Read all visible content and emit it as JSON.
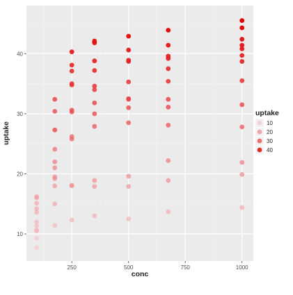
{
  "chart_data": {
    "type": "scatter",
    "xlabel": "conc",
    "ylabel": "uptake",
    "xlim": [
      50,
      1050
    ],
    "ylim": [
      5.5,
      48
    ],
    "x_ticks": [
      250,
      500,
      750,
      1000
    ],
    "y_ticks": [
      10,
      20,
      30,
      40
    ],
    "grid": true,
    "legend": {
      "title": "uptake",
      "position": "right",
      "entries": [
        "10",
        "20",
        "30",
        "40"
      ],
      "levels": [
        10,
        20,
        30,
        40
      ]
    },
    "color_scale": {
      "low": "#f9c3c9",
      "high": "#e00000",
      "min": 7.7,
      "max": 45.5
    },
    "points": [
      {
        "x": 95,
        "y": 16.0
      },
      {
        "x": 95,
        "y": 13.6
      },
      {
        "x": 95,
        "y": 16.2
      },
      {
        "x": 95,
        "y": 14.2
      },
      {
        "x": 95,
        "y": 15.1
      },
      {
        "x": 95,
        "y": 12.0
      },
      {
        "x": 95,
        "y": 11.3
      },
      {
        "x": 95,
        "y": 10.6
      },
      {
        "x": 95,
        "y": 10.6
      },
      {
        "x": 95,
        "y": 9.3
      },
      {
        "x": 95,
        "y": 7.7
      },
      {
        "x": 95,
        "y": 10.5
      },
      {
        "x": 175,
        "y": 30.4
      },
      {
        "x": 175,
        "y": 27.3
      },
      {
        "x": 175,
        "y": 32.4
      },
      {
        "x": 175,
        "y": 24.1
      },
      {
        "x": 175,
        "y": 21.0
      },
      {
        "x": 175,
        "y": 19.2
      },
      {
        "x": 175,
        "y": 22.0
      },
      {
        "x": 175,
        "y": 19.5
      },
      {
        "x": 175,
        "y": 18.0
      },
      {
        "x": 175,
        "y": 11.4
      },
      {
        "x": 175,
        "y": 15.0
      },
      {
        "x": 175,
        "y": 27.3
      },
      {
        "x": 250,
        "y": 34.8
      },
      {
        "x": 250,
        "y": 37.1
      },
      {
        "x": 250,
        "y": 40.3
      },
      {
        "x": 250,
        "y": 30.6
      },
      {
        "x": 250,
        "y": 30.3
      },
      {
        "x": 250,
        "y": 35.0
      },
      {
        "x": 250,
        "y": 25.8
      },
      {
        "x": 250,
        "y": 26.2
      },
      {
        "x": 250,
        "y": 18.1
      },
      {
        "x": 250,
        "y": 18.0
      },
      {
        "x": 250,
        "y": 12.3
      },
      {
        "x": 250,
        "y": 38.1
      },
      {
        "x": 350,
        "y": 37.2
      },
      {
        "x": 350,
        "y": 41.8
      },
      {
        "x": 350,
        "y": 42.1
      },
      {
        "x": 350,
        "y": 34.0
      },
      {
        "x": 350,
        "y": 34.6
      },
      {
        "x": 350,
        "y": 38.8
      },
      {
        "x": 350,
        "y": 30.0
      },
      {
        "x": 350,
        "y": 27.9
      },
      {
        "x": 350,
        "y": 18.9
      },
      {
        "x": 350,
        "y": 17.9
      },
      {
        "x": 350,
        "y": 13.0
      },
      {
        "x": 350,
        "y": 31.8
      },
      {
        "x": 500,
        "y": 35.3
      },
      {
        "x": 500,
        "y": 40.6
      },
      {
        "x": 500,
        "y": 42.9
      },
      {
        "x": 500,
        "y": 38.9
      },
      {
        "x": 500,
        "y": 38.7
      },
      {
        "x": 500,
        "y": 32.4
      },
      {
        "x": 500,
        "y": 31.0
      },
      {
        "x": 500,
        "y": 28.5
      },
      {
        "x": 500,
        "y": 19.6
      },
      {
        "x": 500,
        "y": 17.9
      },
      {
        "x": 500,
        "y": 12.5
      },
      {
        "x": 500,
        "y": 32.5
      },
      {
        "x": 675,
        "y": 39.2
      },
      {
        "x": 675,
        "y": 41.4
      },
      {
        "x": 675,
        "y": 43.9
      },
      {
        "x": 675,
        "y": 37.5
      },
      {
        "x": 675,
        "y": 39.6
      },
      {
        "x": 675,
        "y": 35.4
      },
      {
        "x": 675,
        "y": 31.1
      },
      {
        "x": 675,
        "y": 28.1
      },
      {
        "x": 675,
        "y": 22.2
      },
      {
        "x": 675,
        "y": 18.9
      },
      {
        "x": 675,
        "y": 13.7
      },
      {
        "x": 675,
        "y": 32.4
      },
      {
        "x": 1000,
        "y": 39.7
      },
      {
        "x": 1000,
        "y": 44.3
      },
      {
        "x": 1000,
        "y": 45.5
      },
      {
        "x": 1000,
        "y": 42.4
      },
      {
        "x": 1000,
        "y": 41.4
      },
      {
        "x": 1000,
        "y": 40.8
      },
      {
        "x": 1000,
        "y": 38.7
      },
      {
        "x": 1000,
        "y": 35.5
      },
      {
        "x": 1000,
        "y": 31.5
      },
      {
        "x": 1000,
        "y": 27.8
      },
      {
        "x": 1000,
        "y": 21.9
      },
      {
        "x": 1000,
        "y": 19.9
      },
      {
        "x": 1000,
        "y": 14.4
      }
    ]
  }
}
